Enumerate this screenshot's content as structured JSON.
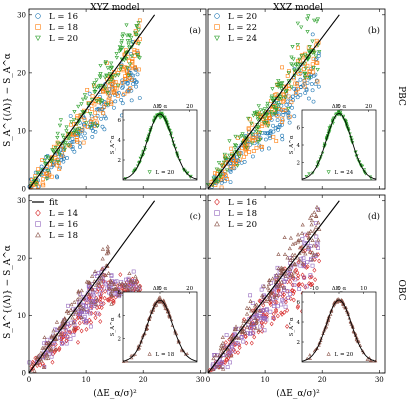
{
  "figure": {
    "col_titles": [
      "XYZ model",
      "XXZ model"
    ],
    "row_labels": [
      "PBC",
      "OBC"
    ],
    "xlabel": "(ΔE_α/σ)²",
    "ylabel_top": "S_A^{(Λ)} − S_A^α",
    "ylabel_bottom": "S_A^{(Λ)} − S_A^α",
    "colors": {
      "blue": "#1f77b4",
      "orange": "#ff7f0e",
      "green": "#2ca02c",
      "red": "#d62728",
      "purple": "#9467bd",
      "brown": "#8c564b",
      "line": "#000000"
    }
  },
  "chart_data": [
    {
      "type": "scatter",
      "panel": "(a)",
      "title": "XYZ model",
      "row_label": "PBC",
      "xlim": [
        0,
        31
      ],
      "ylim": [
        0,
        31
      ],
      "x_ticks": [
        0,
        10,
        20,
        30
      ],
      "y_ticks": [
        0,
        10,
        20,
        30
      ],
      "legend": [
        "L = 16",
        "L = 18",
        "L = 20"
      ],
      "series": [
        {
          "name": "L = 16",
          "marker": "circle",
          "color": "#1f77b4"
        },
        {
          "name": "L = 18",
          "marker": "square",
          "color": "#ff7f0e"
        },
        {
          "name": "L = 20",
          "marker": "triangle-down",
          "color": "#2ca02c"
        }
      ],
      "fit_line": {
        "x": [
          0,
          22
        ],
        "y": [
          0,
          30
        ]
      },
      "inset": {
        "xlabel": "ΔE_α",
        "ylabel": "S_A^α",
        "x_ticks": [
          0,
          20
        ],
        "y_ticks": [
          2,
          4,
          6
        ],
        "xlim": [
          -25,
          25
        ],
        "ylim": [
          0,
          7
        ],
        "label": "L = 20",
        "marker": "triangle-down",
        "color": "#2ca02c",
        "peak": 6.6
      }
    },
    {
      "type": "scatter",
      "panel": "(b)",
      "title": "XXZ model",
      "row_label": "PBC",
      "xlim": [
        0,
        31
      ],
      "ylim": [
        0,
        31
      ],
      "x_ticks": [
        0,
        10,
        20,
        30
      ],
      "y_ticks": [
        0,
        10,
        20,
        30
      ],
      "legend": [
        "L = 20",
        "L = 22",
        "L = 24"
      ],
      "series": [
        {
          "name": "L = 20",
          "marker": "circle",
          "color": "#1f77b4"
        },
        {
          "name": "L = 22",
          "marker": "square",
          "color": "#ff7f0e"
        },
        {
          "name": "L = 24",
          "marker": "triangle-down",
          "color": "#2ca02c"
        }
      ],
      "fit_line": {
        "x": [
          0,
          23
        ],
        "y": [
          0,
          30
        ]
      },
      "inset": {
        "xlabel": "ΔE_α",
        "ylabel": "S_A^α",
        "x_ticks": [
          0,
          20
        ],
        "y_ticks": [
          2,
          4,
          6
        ],
        "xlim": [
          -25,
          25
        ],
        "ylim": [
          0,
          8
        ],
        "label": "L = 24",
        "marker": "triangle-down",
        "color": "#2ca02c",
        "peak": 7.6
      }
    },
    {
      "type": "scatter",
      "panel": "(c)",
      "row_label": "OBC",
      "xlim": [
        0,
        31
      ],
      "ylim": [
        0,
        31
      ],
      "x_ticks": [
        0,
        10,
        20,
        30
      ],
      "y_ticks": [
        0,
        10,
        20,
        30
      ],
      "legend": [
        "fit",
        "L = 14",
        "L = 16",
        "L = 18"
      ],
      "series": [
        {
          "name": "L = 14",
          "marker": "diamond",
          "color": "#d62728"
        },
        {
          "name": "L = 16",
          "marker": "square",
          "color": "#9467bd"
        },
        {
          "name": "L = 18",
          "marker": "triangle-up",
          "color": "#8c564b"
        }
      ],
      "fit_line": {
        "x": [
          0,
          22
        ],
        "y": [
          0,
          30
        ]
      },
      "inset": {
        "xlabel": "ΔE_α",
        "ylabel": "S_A^α",
        "x_ticks": [
          0,
          20
        ],
        "y_ticks": [
          2,
          4,
          6
        ],
        "xlim": [
          -25,
          25
        ],
        "ylim": [
          0,
          6
        ],
        "label": "L = 18",
        "marker": "triangle-up",
        "color": "#8c564b",
        "peak": 5.3
      }
    },
    {
      "type": "scatter",
      "panel": "(d)",
      "row_label": "OBC",
      "xlim": [
        0,
        31
      ],
      "ylim": [
        0,
        31
      ],
      "x_ticks": [
        0,
        10,
        20,
        30
      ],
      "y_ticks": [
        0,
        10,
        20,
        30
      ],
      "legend": [
        "L = 16",
        "L = 18",
        "L = 20"
      ],
      "series": [
        {
          "name": "L = 16",
          "marker": "diamond",
          "color": "#d62728"
        },
        {
          "name": "L = 18",
          "marker": "square",
          "color": "#9467bd"
        },
        {
          "name": "L = 20",
          "marker": "triangle-up",
          "color": "#8c564b"
        }
      ],
      "fit_line": {
        "x": [
          0,
          23
        ],
        "y": [
          0,
          30
        ]
      },
      "inset": {
        "xlabel": "ΔE_α",
        "ylabel": "S_A^α",
        "x_ticks": [
          -10,
          0,
          10
        ],
        "y_ticks": [
          2,
          4,
          6
        ],
        "xlim": [
          -15,
          15
        ],
        "ylim": [
          0,
          7
        ],
        "label": "L = 20",
        "marker": "triangle-up",
        "color": "#8c564b",
        "peak": 6.2
      }
    }
  ]
}
